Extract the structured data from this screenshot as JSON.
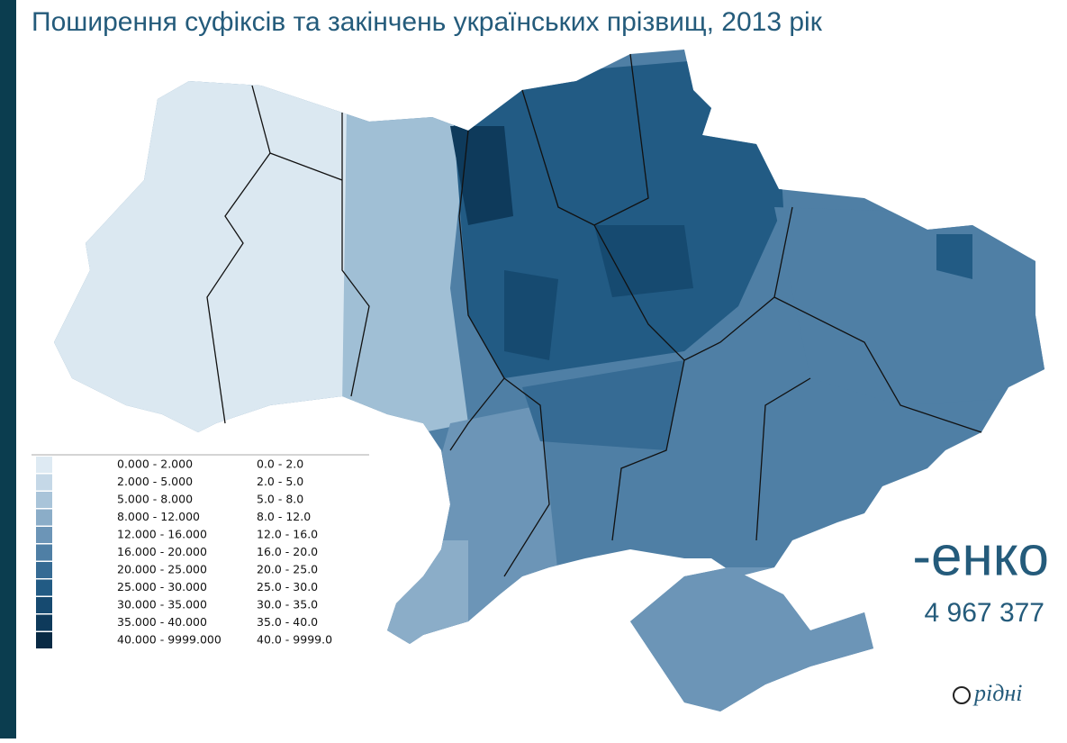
{
  "header": {
    "title": "Поширення суфіксів та закінчень українських прізвищ, 2013 рік"
  },
  "legend": {
    "items": [
      {
        "label": "0.000 - 2.000",
        "label2": "0.0 - 2.0",
        "color": "#deeaf3"
      },
      {
        "label": "2.000 - 5.000",
        "label2": "2.0 - 5.0",
        "color": "#c5d8e7"
      },
      {
        "label": "5.000 - 8.000",
        "label2": "5.0 - 8.0",
        "color": "#a9c4d9"
      },
      {
        "label": "8.000 - 12.000",
        "label2": "8.0 - 12.0",
        "color": "#8badc8"
      },
      {
        "label": "12.000 - 16.000",
        "label2": "12.0 - 16.0",
        "color": "#6c95b7"
      },
      {
        "label": "16.000 - 20.000",
        "label2": "16.0 - 20.0",
        "color": "#4f7fa5"
      },
      {
        "label": "20.000 - 25.000",
        "label2": "20.0 - 25.0",
        "color": "#366b94"
      },
      {
        "label": "25.000 - 30.000",
        "label2": "25.0 - 30.0",
        "color": "#225b84"
      },
      {
        "label": "30.000 - 35.000",
        "label2": "30.0 - 35.0",
        "color": "#164a70"
      },
      {
        "label": "35.000 - 40.000",
        "label2": "35.0 - 40.0",
        "color": "#0e3a5b"
      },
      {
        "label": "40.000 - 9999.000",
        "label2": "40.0 - 9999.0",
        "color": "#082a44"
      }
    ]
  },
  "suffix": {
    "text": "-енко",
    "count": "4 967 377"
  },
  "logo": {
    "text": "рідні"
  }
}
